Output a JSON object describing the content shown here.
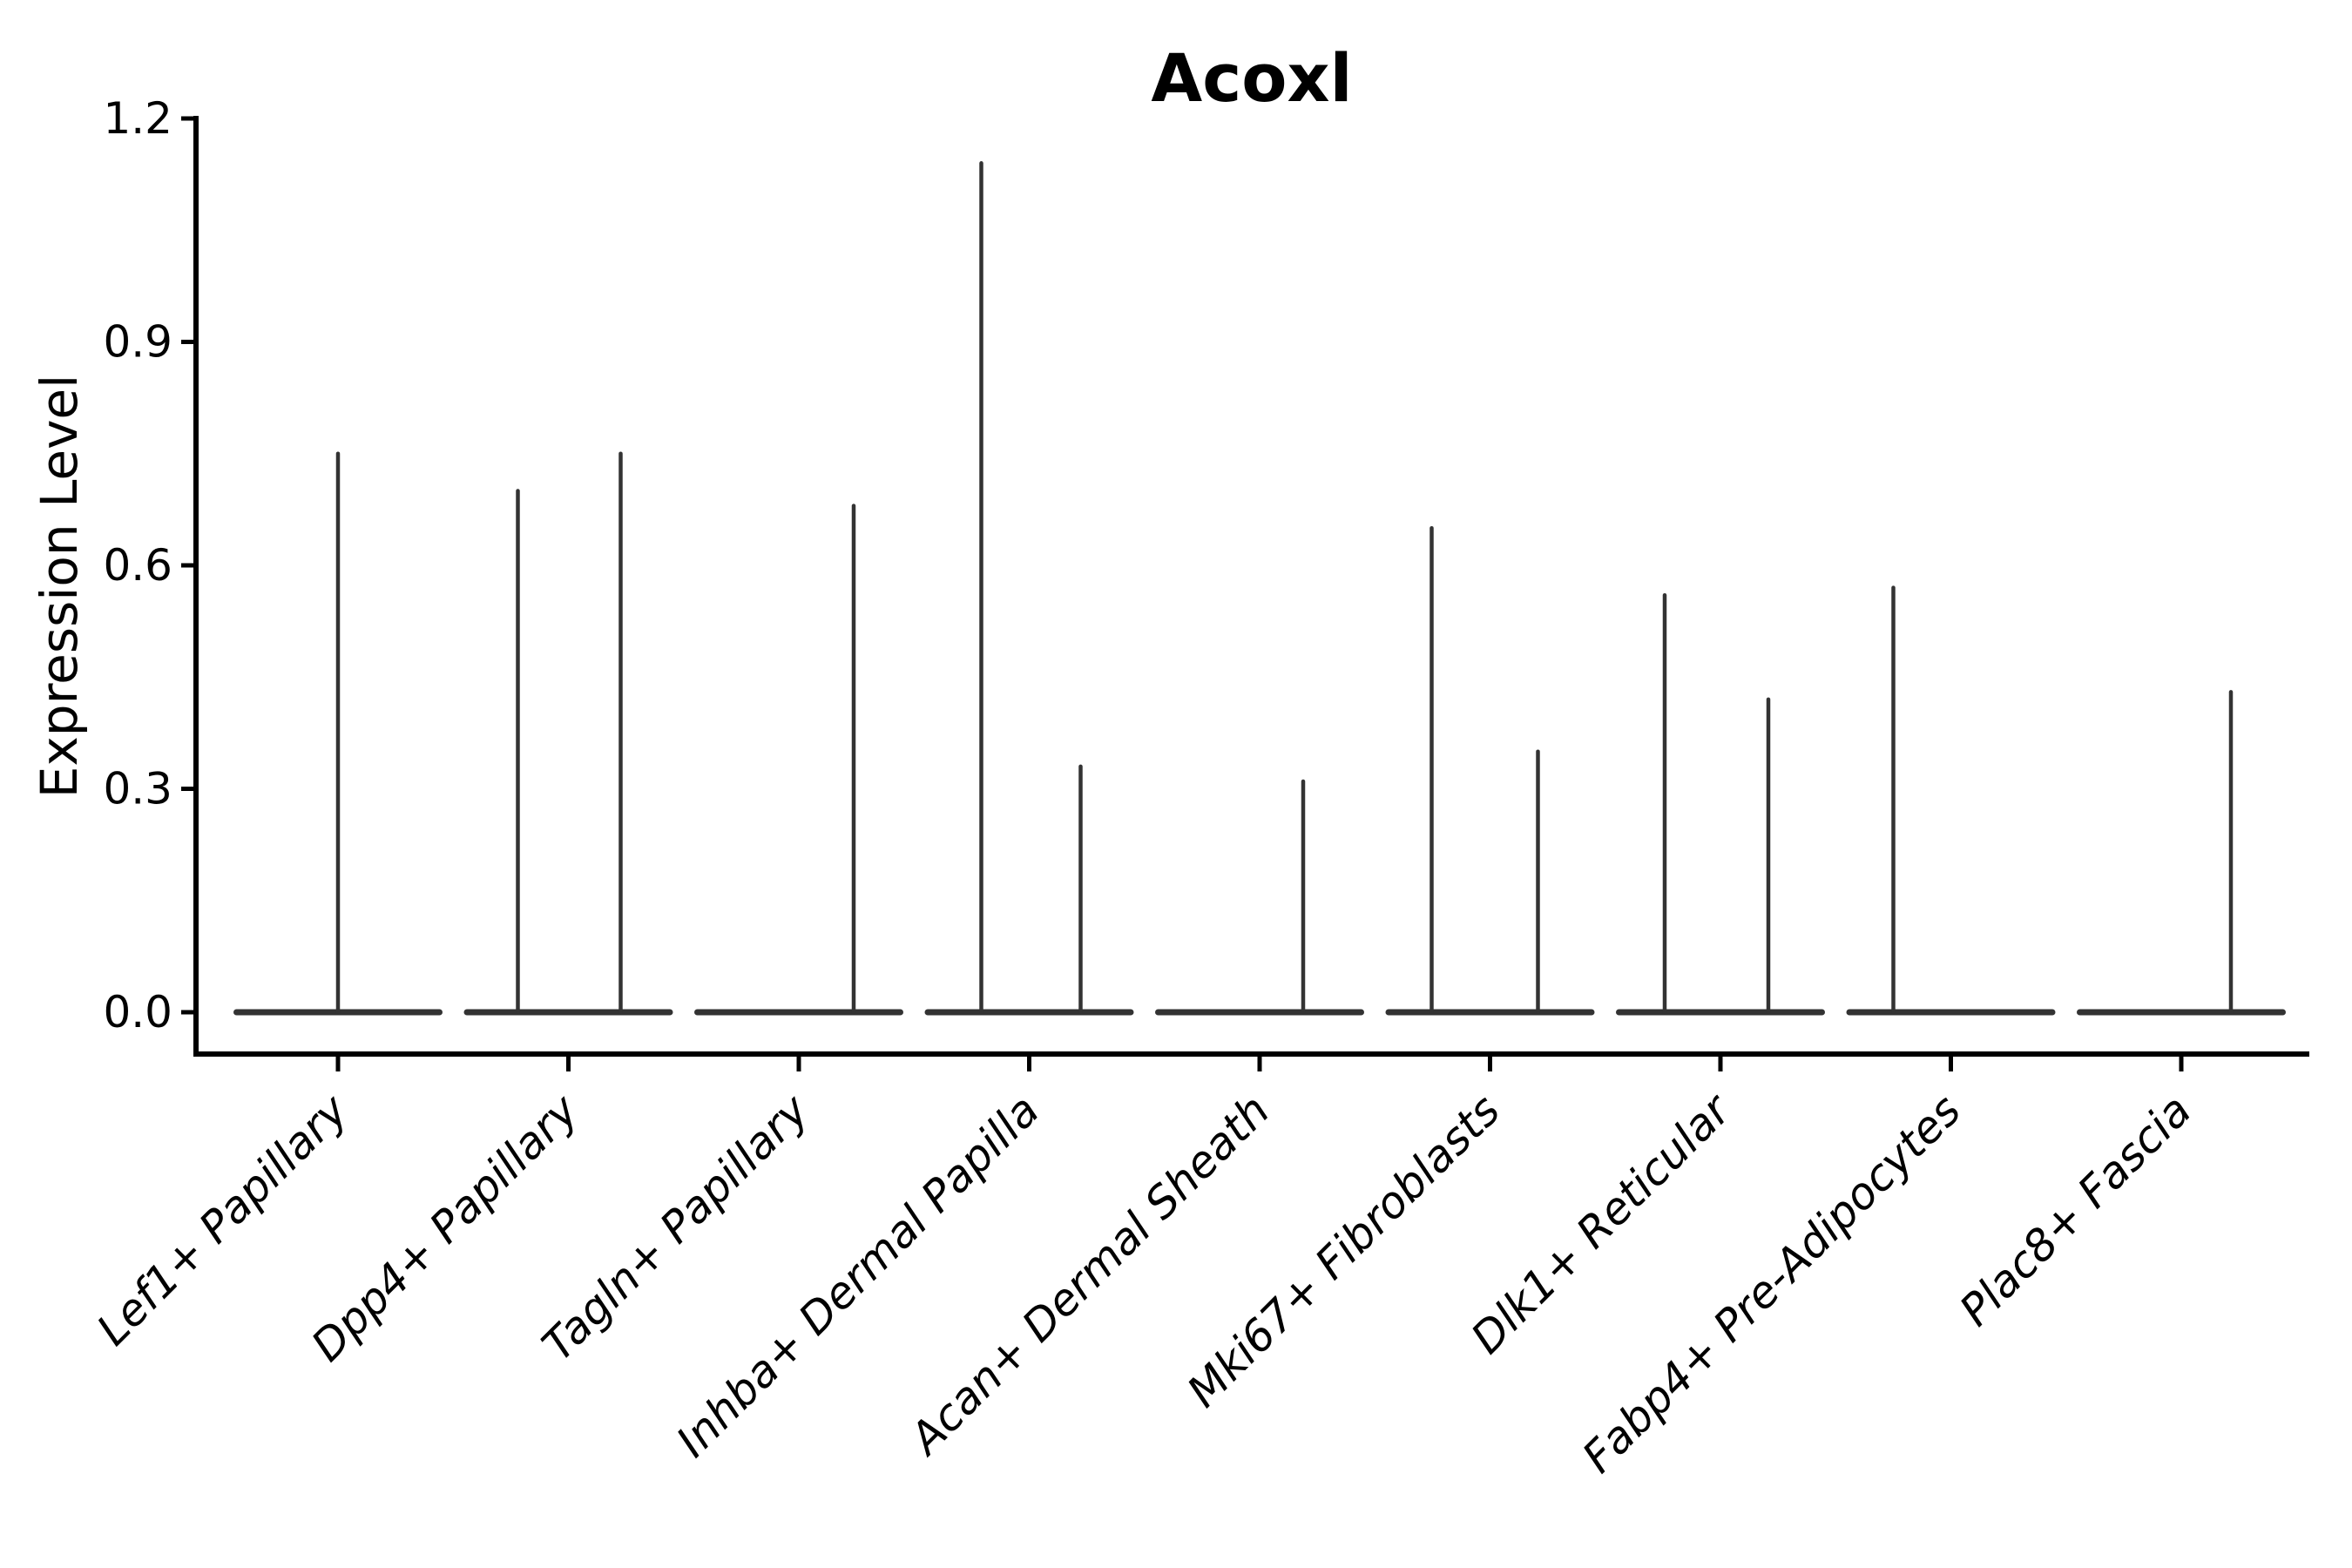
{
  "chart_data": {
    "type": "violin",
    "title": "Acoxl",
    "ylabel": "Expression Level",
    "xlabel": "",
    "ylim": [
      0,
      1.2
    ],
    "y_tick_labels": [
      "0.0",
      "0.3",
      "0.6",
      "0.9",
      "1.2"
    ],
    "y_tick_values": [
      0,
      0.3,
      0.6,
      0.9,
      1.2
    ],
    "grid": false,
    "legend_position": "none",
    "categories": [
      "Lef1+ Papillary",
      "Dpp4+ Papillary",
      "Tagln+ Papillary",
      "Inhba+ Dermal Papilla",
      "Acan+ Dermal Sheath",
      "Mki67+ Fibroblasts",
      "Dlk1+ Reticular",
      "Fabp4+ Pre-Adipocytes",
      "Plac8+ Fascia"
    ],
    "series": [
      {
        "category": "Lef1+ Papillary",
        "violins": [
          {
            "x_offset": 0,
            "max_expression": 0.75
          }
        ]
      },
      {
        "category": "Dpp4+ Papillary",
        "violins": [
          {
            "x_offset": -58,
            "max_expression": 0.7
          },
          {
            "x_offset": 60,
            "max_expression": 0.75
          }
        ]
      },
      {
        "category": "Tagln+ Papillary",
        "violins": [
          {
            "x_offset": 63,
            "max_expression": 0.68
          }
        ]
      },
      {
        "category": "Inhba+ Dermal Papilla",
        "violins": [
          {
            "x_offset": -55,
            "max_expression": 1.14
          },
          {
            "x_offset": 59,
            "max_expression": 0.33
          }
        ]
      },
      {
        "category": "Acan+ Dermal Sheath",
        "violins": [
          {
            "x_offset": 50,
            "max_expression": 0.31
          }
        ]
      },
      {
        "category": "Mki67+ Fibroblasts",
        "violins": [
          {
            "x_offset": -67,
            "max_expression": 0.65
          },
          {
            "x_offset": 55,
            "max_expression": 0.35
          }
        ]
      },
      {
        "category": "Dlk1+ Reticular",
        "violins": [
          {
            "x_offset": -64,
            "max_expression": 0.56
          },
          {
            "x_offset": 55,
            "max_expression": 0.42
          }
        ]
      },
      {
        "category": "Fabp4+ Pre-Adipocytes",
        "violins": [
          {
            "x_offset": -66,
            "max_expression": 0.57
          }
        ]
      },
      {
        "category": "Plac8+ Fascia",
        "violins": [
          {
            "x_offset": 57,
            "max_expression": 0.43
          }
        ]
      }
    ],
    "colors": {
      "violin_line": "#333333",
      "axis_line": "#000000",
      "text": "#000000",
      "background": "#ffffff"
    }
  }
}
